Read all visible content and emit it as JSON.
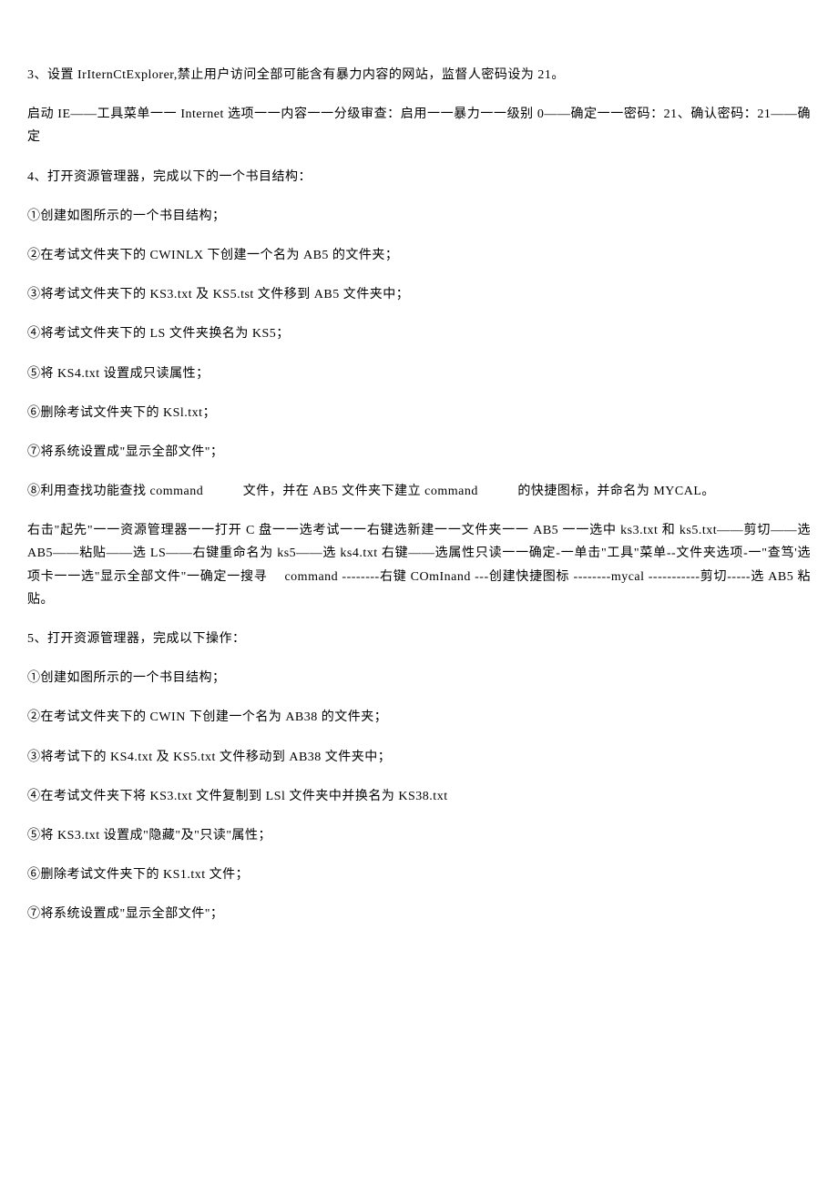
{
  "document": {
    "font_family": "SimSun",
    "font_size": 14,
    "text_color": "#000000",
    "background_color": "#ffffff",
    "line_height": 1.8,
    "paragraph_spacing": 18
  },
  "paragraphs": [
    "3、设置 IrIternCtExplorer,禁止用户访问全部可能含有暴力内容的网站，监督人密码设为 21。",
    "启动 IE——工具菜单一一 Internet 选项一一内容一一分级审查：启用一一暴力一一级别 0——确定一一密码：21、确认密码：21——确定",
    "4、打开资源管理器，完成以下的一个书目结构：",
    "①创建如图所示的一个书目结构；",
    "②在考试文件夹下的 CWINLX 下创建一个名为 AB5 的文件夹；",
    "③将考试文件夹下的 KS3.txt 及 KS5.tst 文件移到 AB5 文件夹中；",
    "④将考试文件夹下的 LS 文件夹换名为 KS5；",
    "⑤将 KS4.txt 设置成只读属性；",
    "⑥删除考试文件夹下的 KSl.txt；",
    "⑦将系统设置成\"显示全部文件\"；",
    "⑧利用查找功能查找 command　　　文件，并在 AB5 文件夹下建立 command　　　的快捷图标，并命名为 MYCAL。",
    "右击\"起先\"一一资源管理器一一打开 C 盘一一选考试一一右键选新建一一文件夹一一 AB5 一一选中 ks3.txt 和 ks5.txt——剪切——选 AB5——粘贴——选 LS——右键重命名为 ks5——选 ks4.txt 右键——选属性只读一一确定-一单击\"工具\"菜单--文件夹选项-一\"查笃'选项卡一一选\"显示全部文件\"一确定一搜寻　 command --------右键 COmInand ---创建快捷图标 --------mycal -----------剪切-----选 AB5 粘贴。",
    "5、打开资源管理器，完成以下操作：",
    "①创建如图所示的一个书目结构；",
    "②在考试文件夹下的 CWIN 下创建一个名为 AB38 的文件夹；",
    "③将考试下的 KS4.txt 及 KS5.txt 文件移动到 AB38 文件夹中；",
    "④在考试文件夹下将 KS3.txt 文件复制到 LSl 文件夹中并换名为 KS38.txt",
    "⑤将 KS3.txt 设置成\"隐藏\"及\"只读\"属性；",
    "⑥删除考试文件夹下的 KS1.txt 文件；",
    "⑦将系统设置成\"显示全部文件\"；"
  ]
}
